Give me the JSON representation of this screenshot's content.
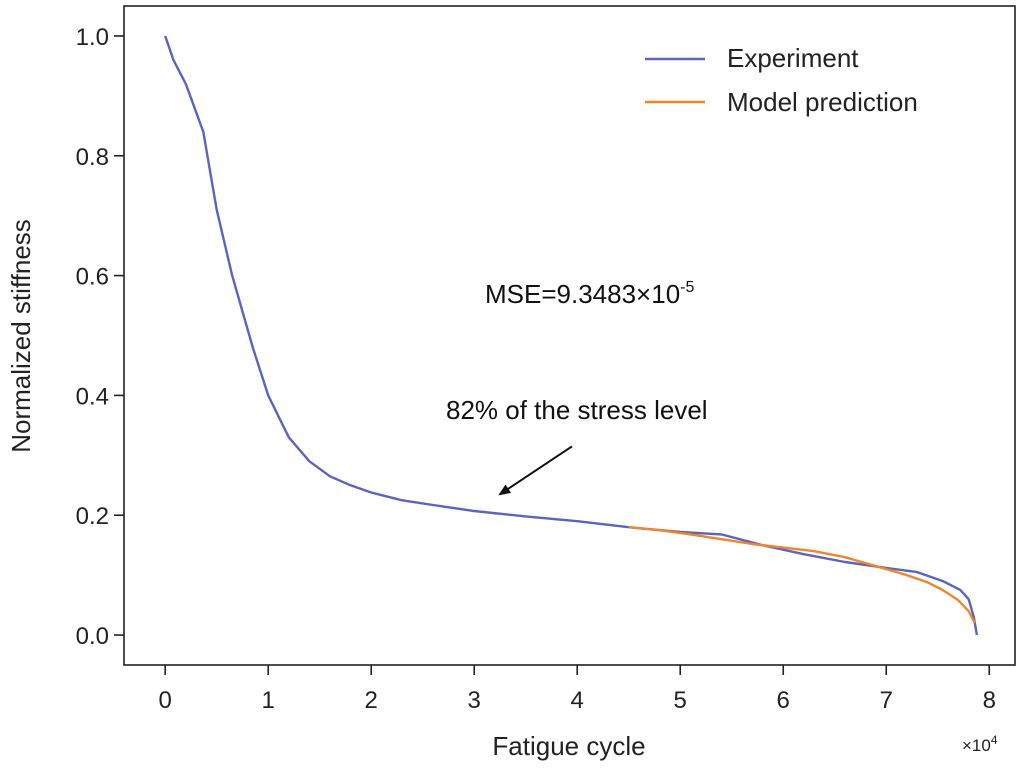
{
  "chart_data": {
    "type": "line",
    "title": "",
    "xlabel": "Fatigue cycle",
    "ylabel": "Normalized stiffness",
    "x_multiplier": "×10",
    "x_multiplier_exp": "4",
    "xlim": [
      -0.4,
      8.25
    ],
    "ylim": [
      -0.05,
      1.05
    ],
    "xticks": [
      0,
      1,
      2,
      3,
      4,
      5,
      6,
      7,
      8
    ],
    "xtick_labels": [
      "0",
      "1",
      "2",
      "3",
      "4",
      "5",
      "6",
      "7",
      "8"
    ],
    "yticks": [
      0.0,
      0.2,
      0.4,
      0.6,
      0.8,
      1.0
    ],
    "ytick_labels": [
      "0.0",
      "0.2",
      "0.4",
      "0.6",
      "0.8",
      "1.0"
    ],
    "grid": false,
    "legend_position": "top-right",
    "series": [
      {
        "name": "Experiment",
        "color": "#5b63c2",
        "x": [
          0,
          0.08,
          0.2,
          0.37,
          0.5,
          0.65,
          0.85,
          1.0,
          1.2,
          1.4,
          1.6,
          1.8,
          2.0,
          2.3,
          2.6,
          3.0,
          3.5,
          4.0,
          4.5,
          5.0,
          5.4,
          5.8,
          6.2,
          6.6,
          7.0,
          7.3,
          7.55,
          7.72,
          7.8,
          7.85,
          7.88
        ],
        "y": [
          1.0,
          0.96,
          0.92,
          0.84,
          0.71,
          0.6,
          0.48,
          0.4,
          0.33,
          0.29,
          0.265,
          0.25,
          0.238,
          0.225,
          0.217,
          0.207,
          0.198,
          0.19,
          0.18,
          0.172,
          0.168,
          0.15,
          0.135,
          0.122,
          0.112,
          0.105,
          0.09,
          0.075,
          0.06,
          0.03,
          0.0
        ]
      },
      {
        "name": "Model prediction",
        "color": "#f0862a",
        "x": [
          4.5,
          4.8,
          5.1,
          5.4,
          5.7,
          6.0,
          6.3,
          6.6,
          6.9,
          7.2,
          7.4,
          7.55,
          7.7,
          7.8,
          7.86
        ],
        "y": [
          0.18,
          0.175,
          0.168,
          0.16,
          0.152,
          0.146,
          0.14,
          0.13,
          0.115,
          0.1,
          0.088,
          0.075,
          0.058,
          0.04,
          0.02
        ]
      }
    ],
    "annotations": {
      "mse_base": "MSE=9.3483×10",
      "mse_exp": "-5",
      "stress_label": "82% of  the stress level",
      "arrow_from": [
        3.95,
        0.315
      ],
      "arrow_to": [
        3.25,
        0.235
      ]
    }
  }
}
